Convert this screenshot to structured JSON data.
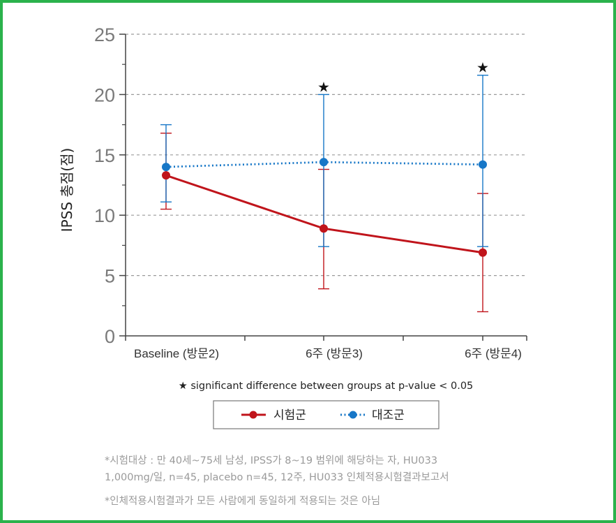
{
  "colors": {
    "border": "#2bb24c",
    "treatment": "#c0141b",
    "control": "#1777c7",
    "grid": "#9a9a9a"
  },
  "chart_data": {
    "type": "line",
    "categories": [
      "Baseline (방문2)",
      "6주 (방문3)",
      "6주 (방문4)"
    ],
    "ylabel": "IPSS 총점(점)",
    "ylim": [
      0,
      25
    ],
    "yticks": [
      0,
      5,
      10,
      15,
      20,
      25
    ],
    "grid": true,
    "series": [
      {
        "name": "시험군",
        "color": "#c0141b",
        "style": "solid",
        "values": [
          13.3,
          8.9,
          6.9
        ],
        "err_low": [
          10.5,
          3.9,
          2.0
        ],
        "err_high": [
          16.8,
          13.8,
          11.8
        ]
      },
      {
        "name": "대조군",
        "color": "#1777c7",
        "style": "dotted",
        "values": [
          14.0,
          14.4,
          14.2
        ],
        "err_low": [
          11.1,
          7.4,
          7.4
        ],
        "err_high": [
          17.5,
          20.0,
          21.6
        ]
      }
    ],
    "significance_markers": [
      {
        "category": "6주 (방문3)",
        "y": 20.7,
        "symbol": "★"
      },
      {
        "category": "6주 (방문4)",
        "y": 22.3,
        "symbol": "★"
      }
    ],
    "annotation": "★ significant difference between groups at p-value < 0.05",
    "legend_position": "bottom-center"
  },
  "footnotes": [
    "*시험대상 : 만 40세~75세 남성, IPSS가 8~19 범위에 해당하는 자, HU033",
    "1,000mg/일, n=45, placebo n=45, 12주, HU033 인체적용시험결과보고서",
    "*인체적용시험결과가 모든 사람에게 동일하게 적용되는 것은 아님"
  ]
}
